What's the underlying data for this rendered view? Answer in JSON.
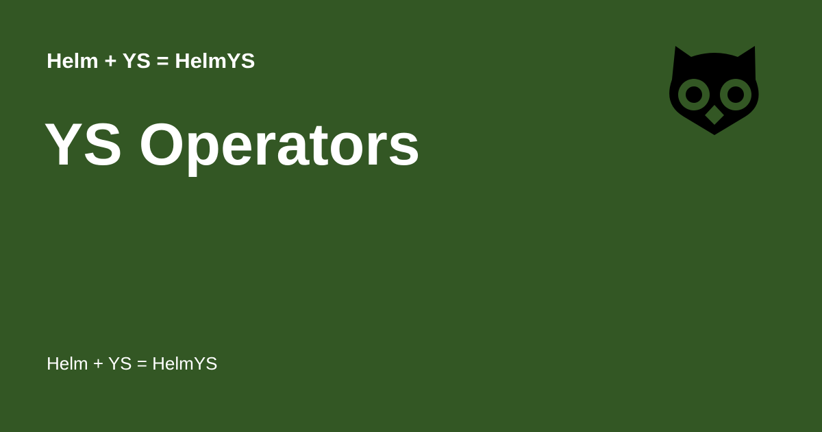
{
  "header": {
    "site_name": "Helm + YS = HelmYS"
  },
  "main": {
    "title": "YS Operators"
  },
  "footer": {
    "text": "Helm + YS = HelmYS"
  },
  "logo": {
    "icon": "owl-icon"
  },
  "colors": {
    "background": "#335724",
    "text": "#ffffff",
    "logo": "#000000"
  }
}
